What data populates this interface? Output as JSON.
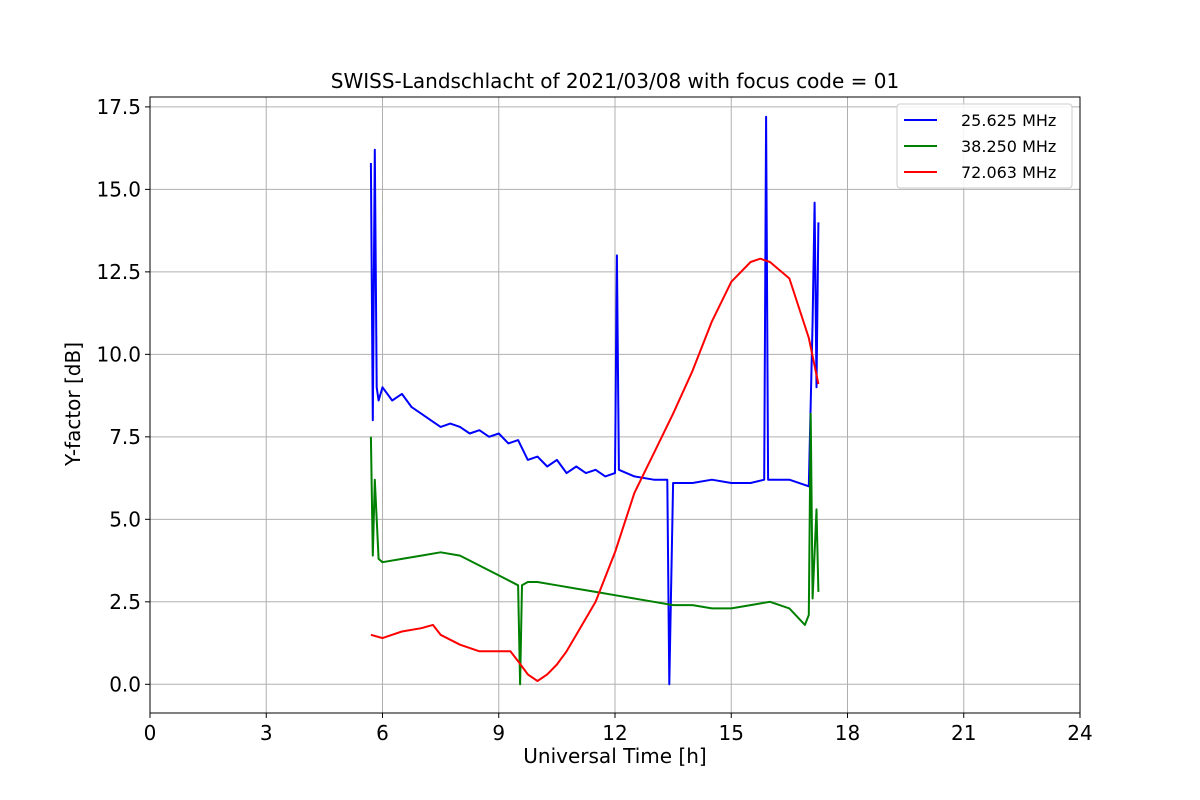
{
  "chart_data": {
    "type": "line",
    "title": "SWISS-Landschlacht of 2021/03/08 with focus code = 01",
    "xlabel": "Universal Time [h]",
    "ylabel": "Y-factor [dB]",
    "xlim": [
      0,
      24
    ],
    "ylim": [
      -0.87,
      17.8
    ],
    "xticks": [
      0,
      3,
      6,
      9,
      12,
      15,
      18,
      21,
      24
    ],
    "xtick_labels": [
      "0",
      "3",
      "6",
      "9",
      "12",
      "15",
      "18",
      "21",
      "24"
    ],
    "yticks": [
      0.0,
      2.5,
      5.0,
      7.5,
      10.0,
      12.5,
      15.0,
      17.5
    ],
    "ytick_labels": [
      "0.0",
      "2.5",
      "5.0",
      "7.5",
      "10.0",
      "12.5",
      "15.0",
      "17.5"
    ],
    "grid": true,
    "legend_position": "top-right",
    "series": [
      {
        "name": "25.625 MHz",
        "color": "#0000ff",
        "x": [
          5.7,
          5.75,
          5.8,
          5.85,
          5.9,
          6.0,
          6.25,
          6.5,
          6.75,
          7.0,
          7.25,
          7.5,
          7.75,
          8.0,
          8.25,
          8.5,
          8.75,
          9.0,
          9.25,
          9.5,
          9.75,
          10.0,
          10.25,
          10.5,
          10.75,
          11.0,
          11.25,
          11.5,
          11.75,
          12.0,
          12.05,
          12.1,
          12.5,
          13.0,
          13.35,
          13.4,
          13.5,
          14.0,
          14.5,
          15.0,
          15.5,
          15.85,
          15.9,
          15.95,
          16.5,
          17.0,
          17.1,
          17.15,
          17.2,
          17.25
        ],
        "y": [
          15.8,
          8.0,
          16.2,
          9.0,
          8.6,
          9.0,
          8.6,
          8.8,
          8.4,
          8.2,
          8.0,
          7.8,
          7.9,
          7.8,
          7.6,
          7.7,
          7.5,
          7.6,
          7.3,
          7.4,
          6.8,
          6.9,
          6.6,
          6.8,
          6.4,
          6.6,
          6.4,
          6.5,
          6.3,
          6.4,
          13.0,
          6.5,
          6.3,
          6.2,
          6.2,
          0.0,
          6.1,
          6.1,
          6.2,
          6.1,
          6.1,
          6.2,
          17.2,
          6.2,
          6.2,
          6.0,
          11.0,
          14.6,
          9.0,
          14.0
        ]
      },
      {
        "name": "38.250 MHz",
        "color": "#008000",
        "x": [
          5.7,
          5.75,
          5.8,
          5.9,
          6.0,
          6.5,
          7.0,
          7.5,
          8.0,
          8.5,
          9.0,
          9.5,
          9.55,
          9.6,
          9.75,
          10.0,
          10.5,
          11.0,
          11.5,
          12.0,
          12.5,
          13.0,
          13.5,
          14.0,
          14.5,
          15.0,
          15.5,
          16.0,
          16.5,
          16.9,
          17.0,
          17.05,
          17.1,
          17.2,
          17.25
        ],
        "y": [
          7.5,
          3.9,
          6.2,
          3.8,
          3.7,
          3.8,
          3.9,
          4.0,
          3.9,
          3.6,
          3.3,
          3.0,
          0.0,
          3.0,
          3.1,
          3.1,
          3.0,
          2.9,
          2.8,
          2.7,
          2.6,
          2.5,
          2.4,
          2.4,
          2.3,
          2.3,
          2.4,
          2.5,
          2.3,
          1.8,
          2.1,
          8.2,
          2.6,
          5.3,
          2.8
        ]
      },
      {
        "name": "72.063 MHz",
        "color": "#ff0000",
        "x": [
          5.7,
          6.0,
          6.5,
          7.0,
          7.3,
          7.5,
          8.0,
          8.5,
          9.0,
          9.3,
          9.5,
          9.75,
          10.0,
          10.25,
          10.5,
          10.75,
          11.0,
          11.5,
          12.0,
          12.5,
          13.0,
          13.5,
          14.0,
          14.5,
          15.0,
          15.5,
          15.75,
          16.0,
          16.5,
          17.0,
          17.25
        ],
        "y": [
          1.5,
          1.4,
          1.6,
          1.7,
          1.8,
          1.5,
          1.2,
          1.0,
          1.0,
          1.0,
          0.7,
          0.3,
          0.1,
          0.3,
          0.6,
          1.0,
          1.5,
          2.5,
          4.0,
          5.8,
          7.0,
          8.2,
          9.5,
          11.0,
          12.2,
          12.8,
          12.9,
          12.8,
          12.3,
          10.5,
          9.1
        ]
      }
    ]
  }
}
